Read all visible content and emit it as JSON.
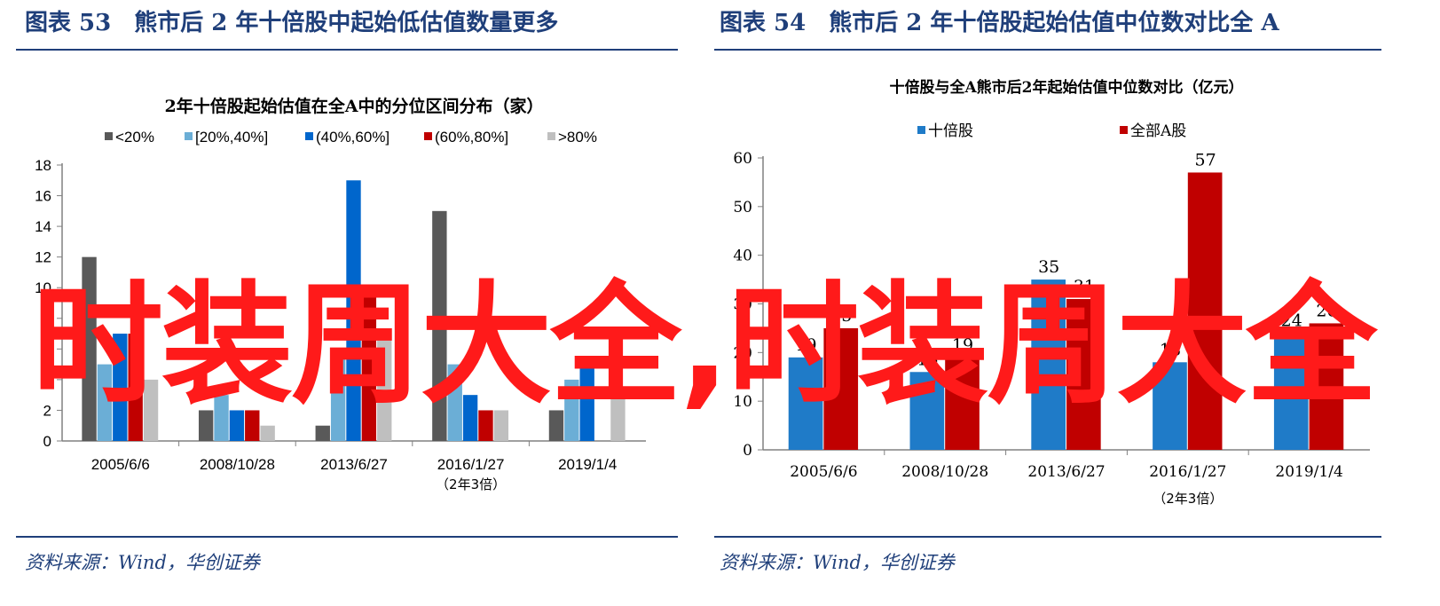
{
  "left": {
    "header": "图表 53　熊市后 2 年十倍股中起始低估值数量更多",
    "source": "资料来源：Wind，华创证券"
  },
  "right": {
    "header": "图表 54　熊市后 2 年十倍股起始估值中位数对比全 A",
    "source": "资料来源：Wind，华创证券"
  },
  "watermark": "时装周大全,时装周大全",
  "chart_data": [
    {
      "type": "bar",
      "title": "2年十倍股起始估值在全A中的分位区间分布（家）",
      "categories": [
        "2005/6/6",
        "2008/10/28",
        "2013/6/27",
        "2016/1/27",
        "2019/1/4"
      ],
      "category_note": "（2年3倍）",
      "note_category_index": 3,
      "series": [
        {
          "name": "<20%",
          "color": "#595959",
          "values": [
            12,
            2,
            1,
            15,
            2
          ]
        },
        {
          "name": "[20%,40%]",
          "color": "#6baed6",
          "values": [
            5,
            3,
            6,
            5,
            4
          ]
        },
        {
          "name": "(40%,60%]",
          "color": "#0066cc",
          "values": [
            7,
            2,
            17,
            3,
            5
          ]
        },
        {
          "name": "(60%,80%]",
          "color": "#c00000",
          "values": [
            7,
            2,
            10,
            2,
            0
          ]
        },
        {
          "name": ">80%",
          "color": "#bfbfbf",
          "values": [
            4,
            1,
            7,
            2,
            3
          ]
        }
      ],
      "ylim": [
        0,
        18
      ],
      "yticks": [
        0,
        2,
        4,
        6,
        8,
        10,
        12,
        14,
        16,
        18
      ],
      "yticks_shown": [
        "18",
        "16",
        "14",
        "12",
        "10",
        "8",
        "6",
        "4",
        "2",
        "0"
      ],
      "legend": "top",
      "grid": false
    },
    {
      "type": "bar",
      "title": "十倍股与全A熊市后2年起始估值中位数对比（亿元）",
      "categories": [
        "2005/6/6",
        "2008/10/28",
        "2013/6/27",
        "2016/1/27",
        "2019/1/4"
      ],
      "category_note": "（2年3倍）",
      "note_category_index": 3,
      "series": [
        {
          "name": "十倍股",
          "color": "#1f7bc8",
          "values": [
            19,
            16,
            35,
            18,
            24
          ],
          "labels": [
            "19",
            "16",
            "35",
            "18",
            "24"
          ]
        },
        {
          "name": "全部A股",
          "color": "#c00000",
          "values": [
            25,
            19,
            31,
            57,
            26
          ],
          "labels": [
            "25",
            "19",
            "31",
            "57",
            "26"
          ]
        }
      ],
      "ylim": [
        0,
        60
      ],
      "yticks": [
        0,
        10,
        20,
        30,
        40,
        50,
        60
      ],
      "legend": "top",
      "grid": false
    }
  ]
}
